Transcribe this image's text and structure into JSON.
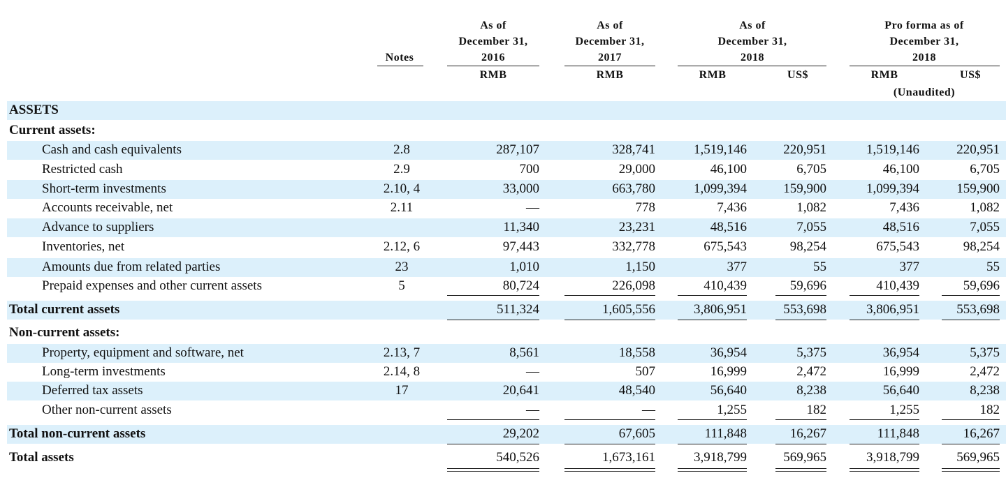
{
  "header": {
    "notes": "Notes",
    "columns": [
      {
        "lines": [
          "As of",
          "December 31,",
          "2016"
        ],
        "units": [
          "RMB"
        ]
      },
      {
        "lines": [
          "As of",
          "December 31,",
          "2017"
        ],
        "units": [
          "RMB"
        ]
      },
      {
        "lines": [
          "As of",
          "December 31,",
          "2018"
        ],
        "units": [
          "RMB",
          "US$"
        ]
      },
      {
        "lines": [
          "Pro forma as of",
          "December 31,",
          "2018"
        ],
        "units": [
          "RMB",
          "US$"
        ],
        "note": "(Unaudited)"
      }
    ]
  },
  "rows": [
    {
      "label": "ASSETS"
    },
    {
      "label": "Current assets:"
    },
    {
      "label": "Cash and cash equivalents",
      "notes": "2.8",
      "values": [
        "287,107",
        "328,741",
        "1,519,146",
        "220,951",
        "1,519,146",
        "220,951"
      ]
    },
    {
      "label": "Restricted cash",
      "notes": "2.9",
      "values": [
        "700",
        "29,000",
        "46,100",
        "6,705",
        "46,100",
        "6,705"
      ]
    },
    {
      "label": "Short-term investments",
      "notes": "2.10, 4",
      "values": [
        "33,000",
        "663,780",
        "1,099,394",
        "159,900",
        "1,099,394",
        "159,900"
      ]
    },
    {
      "label": "Accounts receivable, net",
      "notes": "2.11",
      "values": [
        "—",
        "778",
        "7,436",
        "1,082",
        "7,436",
        "1,082"
      ]
    },
    {
      "label": "Advance to suppliers",
      "values": [
        "11,340",
        "23,231",
        "48,516",
        "7,055",
        "48,516",
        "7,055"
      ]
    },
    {
      "label": "Inventories, net",
      "notes": "2.12, 6",
      "values": [
        "97,443",
        "332,778",
        "675,543",
        "98,254",
        "675,543",
        "98,254"
      ]
    },
    {
      "label": "Amounts due from related parties",
      "notes": "23",
      "values": [
        "1,010",
        "1,150",
        "377",
        "55",
        "377",
        "55"
      ]
    },
    {
      "label": "Prepaid expenses and other current assets",
      "notes": "5",
      "values": [
        "80,724",
        "226,098",
        "410,439",
        "59,696",
        "410,439",
        "59,696"
      ]
    },
    {
      "label": "Total current assets",
      "values": [
        "511,324",
        "1,605,556",
        "3,806,951",
        "553,698",
        "3,806,951",
        "553,698"
      ]
    },
    {
      "label": "Non-current assets:"
    },
    {
      "label": "Property, equipment and software, net",
      "notes": "2.13, 7",
      "values": [
        "8,561",
        "18,558",
        "36,954",
        "5,375",
        "36,954",
        "5,375"
      ]
    },
    {
      "label": "Long-term investments",
      "notes": "2.14, 8",
      "values": [
        "—",
        "507",
        "16,999",
        "2,472",
        "16,999",
        "2,472"
      ]
    },
    {
      "label": "Deferred tax assets",
      "notes": "17",
      "values": [
        "20,641",
        "48,540",
        "56,640",
        "8,238",
        "56,640",
        "8,238"
      ]
    },
    {
      "label": "Other non-current assets",
      "values": [
        "—",
        "—",
        "1,255",
        "182",
        "1,255",
        "182"
      ]
    },
    {
      "label": "Total non-current assets",
      "values": [
        "29,202",
        "67,605",
        "111,848",
        "16,267",
        "111,848",
        "16,267"
      ]
    },
    {
      "label": "Total assets",
      "values": [
        "540,526",
        "1,673,161",
        "3,918,799",
        "569,965",
        "3,918,799",
        "569,965"
      ]
    }
  ]
}
